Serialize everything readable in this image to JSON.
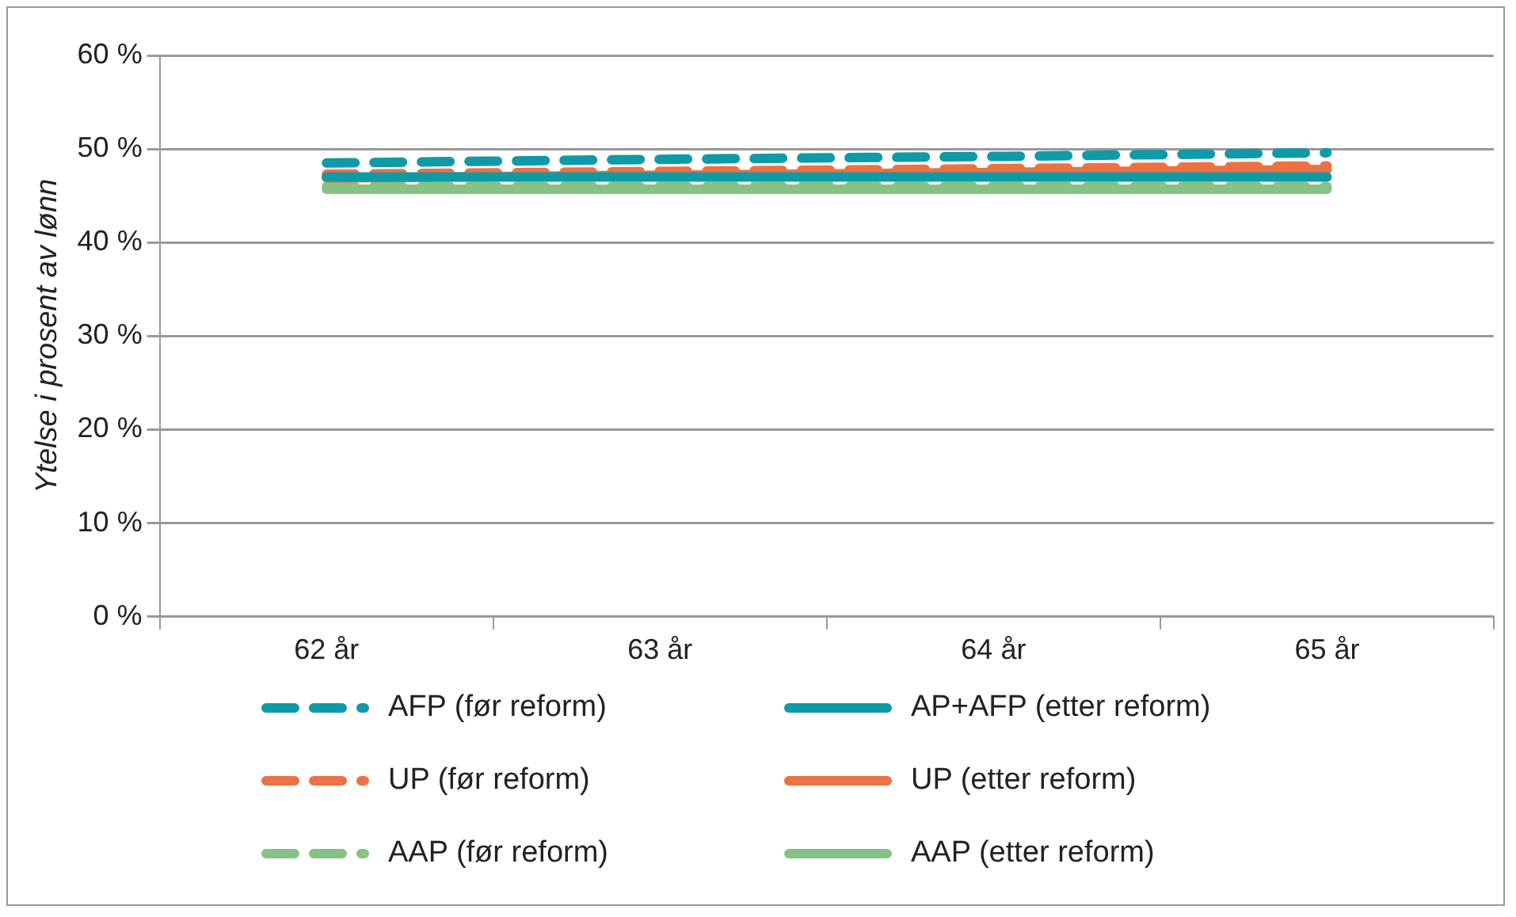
{
  "chart_data": {
    "type": "line",
    "ylabel": "Ytelse i prosent av lønn",
    "categories": [
      "62 år",
      "63 år",
      "64 år",
      "65 år"
    ],
    "series": [
      {
        "name": "AFP (før reform)",
        "color": "#0e9aa7",
        "line_style": "dashed",
        "values": [
          48.5,
          48.9,
          49.2,
          49.6
        ]
      },
      {
        "name": "AP+AFP (etter reform)",
        "color": "#0e9aa7",
        "line_style": "solid",
        "values": [
          47.0,
          47.0,
          47.0,
          47.0
        ]
      },
      {
        "name": "UP (før reform)",
        "color": "#ed7142",
        "line_style": "dashed",
        "values": [
          47.3,
          47.6,
          47.9,
          48.2
        ]
      },
      {
        "name": "UP (etter reform)",
        "color": "#ed7142",
        "line_style": "solid",
        "values": [
          46.9,
          47.2,
          47.5,
          47.8
        ]
      },
      {
        "name": "AAP (før reform)",
        "color": "#86c283",
        "line_style": "dashed",
        "values": [
          46.0,
          46.0,
          46.0,
          46.0
        ]
      },
      {
        "name": "AAP (etter reform)",
        "color": "#86c283",
        "line_style": "solid",
        "values": [
          45.7,
          45.7,
          45.7,
          45.7
        ]
      }
    ],
    "ylim": [
      0,
      60
    ],
    "yticks": [
      {
        "value": 0,
        "label": "0 %"
      },
      {
        "value": 10,
        "label": "10 %"
      },
      {
        "value": 20,
        "label": "20 %"
      },
      {
        "value": 30,
        "label": "30 %"
      },
      {
        "value": 40,
        "label": "40 %"
      },
      {
        "value": 50,
        "label": "50 %"
      },
      {
        "value": 60,
        "label": "60 %"
      }
    ],
    "grid": "y",
    "legend": "bottom",
    "marker": "none"
  }
}
